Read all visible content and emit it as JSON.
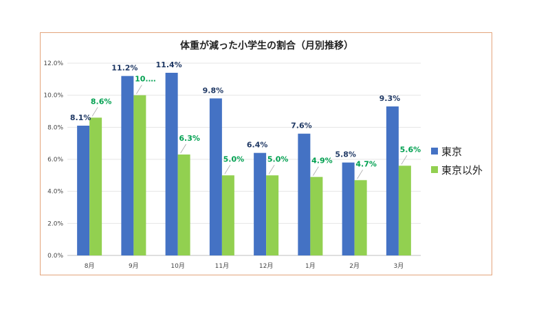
{
  "chart_data": {
    "type": "bar",
    "title": "体重が減った小学生の割合（月別推移）",
    "categories": [
      "8月",
      "9月",
      "10月",
      "11月",
      "12月",
      "1月",
      "2月",
      "3月"
    ],
    "series": [
      {
        "name": "東京",
        "color": "#4472c4",
        "values": [
          8.1,
          11.2,
          11.4,
          9.8,
          6.4,
          7.6,
          5.8,
          9.3
        ],
        "labels": [
          "8.1%",
          "11.2%",
          "11.4%",
          "9.8%",
          "6.4%",
          "7.6%",
          "5.8%",
          "9.3%"
        ],
        "label_color": "#1f3864"
      },
      {
        "name": "東京以外",
        "color": "#92d050",
        "values": [
          8.6,
          10.0,
          6.3,
          5.0,
          5.0,
          4.9,
          4.7,
          5.6
        ],
        "labels": [
          "8.6%",
          "10.…",
          "6.3%",
          "5.0%",
          "5.0%",
          "4.9%",
          "4.7%",
          "5.6%"
        ],
        "label_color": "#00a050"
      }
    ],
    "yticks": [
      "0.0%",
      "2.0%",
      "4.0%",
      "6.0%",
      "8.0%",
      "10.0%",
      "12.0%"
    ],
    "ylim": [
      0,
      12
    ],
    "grid": true,
    "legend": "right"
  }
}
